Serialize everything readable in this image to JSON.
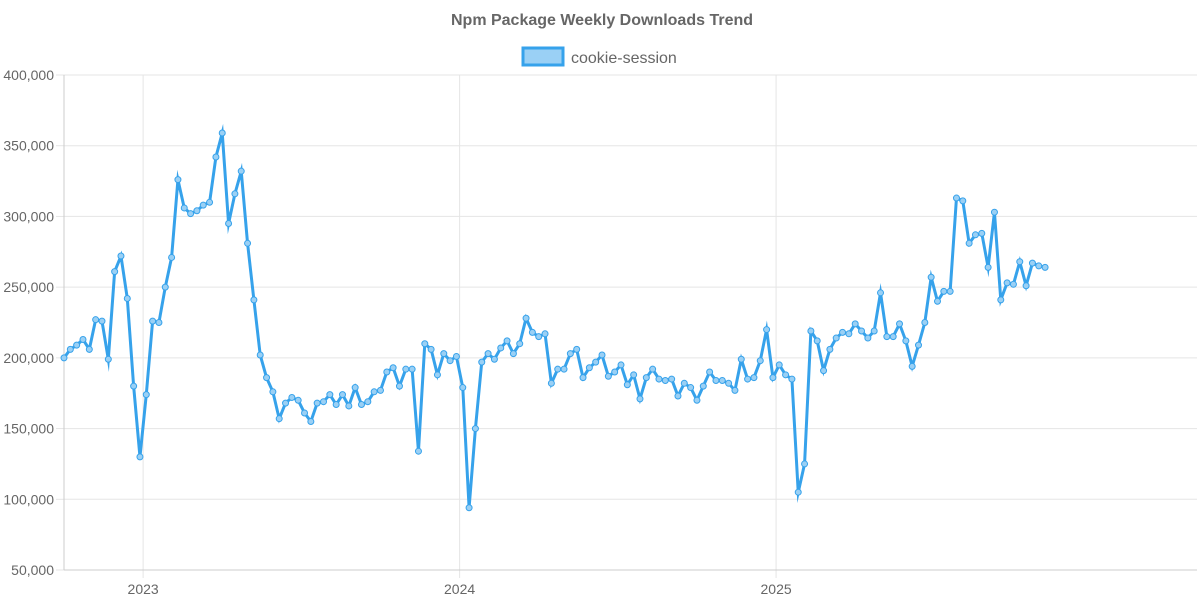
{
  "chart_data": {
    "type": "line",
    "title": "Npm Package Weekly Downloads Trend",
    "xlabel": "",
    "ylabel": "",
    "ylim": [
      50000,
      400000
    ],
    "yticks": [
      50000,
      100000,
      150000,
      200000,
      250000,
      300000,
      350000,
      400000
    ],
    "ytick_labels": [
      "50,000",
      "100,000",
      "150,000",
      "200,000",
      "250,000",
      "300,000",
      "350,000",
      "400,000"
    ],
    "xlim_weeks": [
      0,
      179
    ],
    "xticks": [
      {
        "label": "2023",
        "week": 12.5
      },
      {
        "label": "2024",
        "week": 62.5
      },
      {
        "label": "2025",
        "week": 112.5
      }
    ],
    "legend_position": "top-center",
    "colors": {
      "line": "#36a2eb",
      "fill": "#9ad0f5",
      "text": "#666666"
    },
    "series": [
      {
        "name": "cookie-session",
        "x_start_week": 0,
        "values": [
          200000,
          206000,
          209000,
          213000,
          206000,
          227000,
          226000,
          199000,
          261000,
          272000,
          242000,
          180000,
          130000,
          174000,
          226000,
          225000,
          250000,
          271000,
          326000,
          306000,
          302000,
          304000,
          308000,
          310000,
          342000,
          359000,
          295000,
          316000,
          332000,
          281000,
          241000,
          202000,
          186000,
          176000,
          157000,
          168000,
          172000,
          170000,
          161000,
          155000,
          168000,
          169000,
          174000,
          167000,
          174000,
          166000,
          179000,
          167000,
          169000,
          176000,
          177000,
          190000,
          193000,
          180000,
          192000,
          192000,
          134000,
          210000,
          206000,
          188000,
          203000,
          198000,
          201000,
          179000,
          94000,
          150000,
          197000,
          203000,
          199000,
          207000,
          212000,
          203000,
          210000,
          228000,
          218000,
          215000,
          217000,
          182000,
          192000,
          192000,
          203000,
          206000,
          186000,
          193000,
          197000,
          202000,
          187000,
          190000,
          195000,
          181000,
          188000,
          171000,
          186000,
          192000,
          185000,
          184000,
          185000,
          173000,
          182000,
          179000,
          170000,
          180000,
          190000,
          184000,
          184000,
          182000,
          177000,
          199000,
          185000,
          186000,
          198000,
          220000,
          186000,
          195000,
          188000,
          185000,
          105000,
          125000,
          219000,
          212000,
          191000,
          206000,
          214000,
          218000,
          217000,
          224000,
          219000,
          214000,
          219000,
          246000,
          215000,
          215000,
          224000,
          212000,
          194000,
          209000,
          225000,
          257000,
          240000,
          247000,
          247000,
          313000,
          311000,
          281000,
          287000,
          288000,
          264000,
          303000,
          241000,
          253000,
          252000,
          268000,
          251000,
          267000,
          265000,
          264000
        ]
      }
    ]
  }
}
